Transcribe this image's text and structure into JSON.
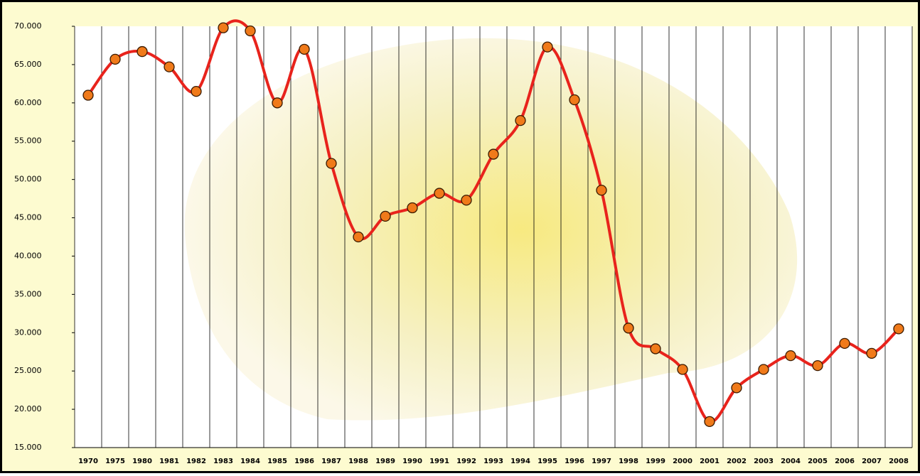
{
  "chart_data": {
    "type": "line",
    "categories": [
      "1970",
      "1975",
      "1980",
      "1981",
      "1982",
      "1983",
      "1984",
      "1985",
      "1986",
      "1987",
      "1988",
      "1989",
      "1990",
      "1991",
      "1992",
      "1993",
      "1994",
      "1995",
      "1996",
      "1997",
      "1998",
      "1999",
      "2000",
      "2001",
      "2002",
      "2003",
      "2004",
      "2005",
      "2006",
      "2007",
      "2008"
    ],
    "series": [
      {
        "color": "#e8231c",
        "marker_color": "#f07a1a",
        "values": [
          61000,
          65700,
          66700,
          64700,
          61500,
          69800,
          69400,
          60000,
          67000,
          52100,
          42500,
          45200,
          46300,
          48200,
          47300,
          53300,
          57700,
          67300,
          60400,
          48600,
          30600,
          27900,
          25200,
          18400,
          22800,
          25200,
          27000,
          25700,
          28600,
          27300,
          30500
        ]
      }
    ],
    "ylim": [
      15000,
      70000
    ],
    "yticks": [
      {
        "value": 15000,
        "label": "15.000"
      },
      {
        "value": 20000,
        "label": "20.000"
      },
      {
        "value": 25000,
        "label": "25.000"
      },
      {
        "value": 30000,
        "label": "30.000"
      },
      {
        "value": 35000,
        "label": "35.000"
      },
      {
        "value": 40000,
        "label": "40.000"
      },
      {
        "value": 45000,
        "label": "45.000"
      },
      {
        "value": 50000,
        "label": "50.000"
      },
      {
        "value": 55000,
        "label": "55.000"
      },
      {
        "value": 60000,
        "label": "60.000"
      },
      {
        "value": 65000,
        "label": "65.000"
      },
      {
        "value": 70000,
        "label": "70.000"
      }
    ],
    "smooth": true
  }
}
